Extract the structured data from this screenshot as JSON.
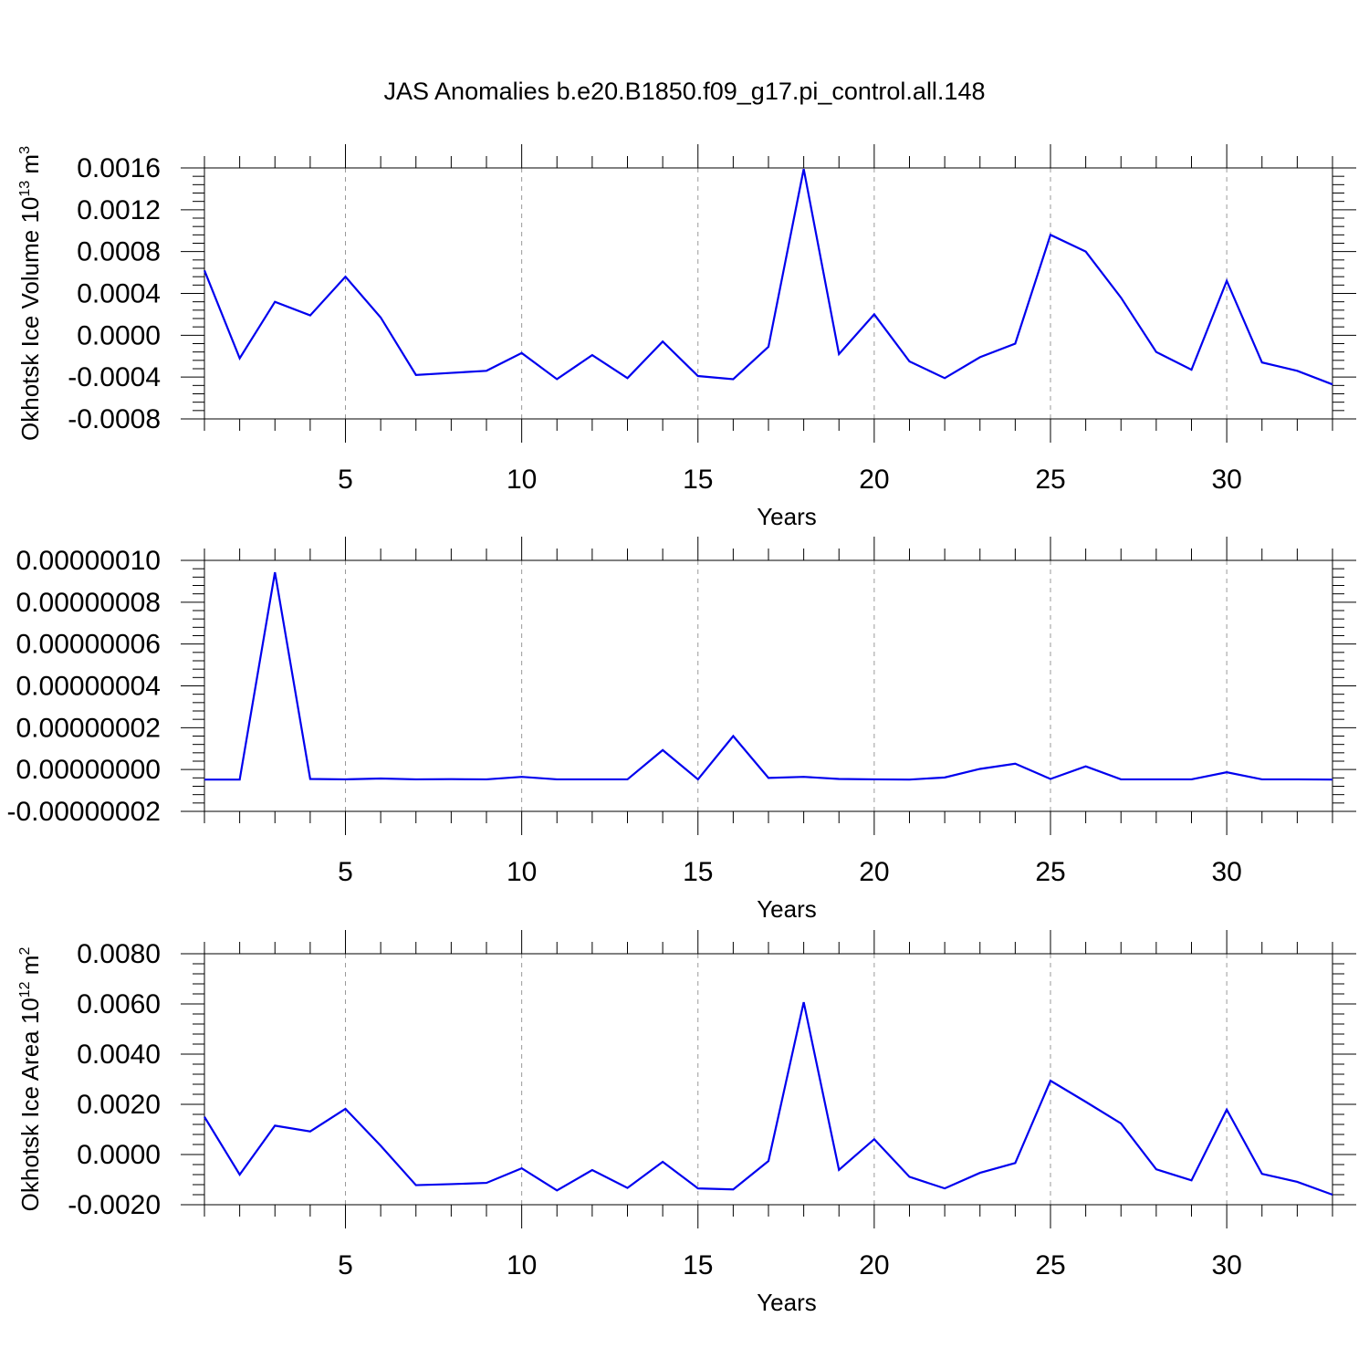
{
  "title": "JAS Anomalies b.e20.B1850.f09_g17.pi_control.all.148",
  "colors": {
    "line": "#0000ee",
    "axis": "#000000",
    "grid": "#9a9a9a"
  },
  "chart_data": [
    {
      "type": "line",
      "xlabel": "Years",
      "ylabel": "Okhotsk Ice Volume 10",
      "ylabel_sup": "13",
      "ylabel_unit": " m",
      "ylabel_unit_sup": "3",
      "xlim": [
        1,
        33
      ],
      "ylim": [
        -0.0008,
        0.0016
      ],
      "xticks": [
        5,
        10,
        15,
        20,
        25,
        30
      ],
      "xtick_labels": [
        "5",
        "10",
        "15",
        "20",
        "25",
        "30"
      ],
      "yticks": [
        -0.0008,
        -0.0004,
        0.0,
        0.0004,
        0.0008,
        0.0012,
        0.0016
      ],
      "ytick_labels": [
        "-0.0008",
        "-0.0004",
        "0.0000",
        "0.0004",
        "0.0008",
        "0.0012",
        "0.0016"
      ],
      "grid": "vertical dashed at major x ticks",
      "x": [
        1,
        2,
        3,
        4,
        5,
        6,
        7,
        8,
        9,
        10,
        11,
        12,
        13,
        14,
        15,
        16,
        17,
        18,
        19,
        20,
        21,
        22,
        23,
        24,
        25,
        26,
        27,
        28,
        29,
        30,
        31,
        32,
        33
      ],
      "y": [
        0.00062,
        -0.00022,
        0.00032,
        0.00019,
        0.00056,
        0.00017,
        -0.00038,
        -0.00036,
        -0.00034,
        -0.00017,
        -0.00042,
        -0.00019,
        -0.00041,
        -6e-05,
        -0.00039,
        -0.00042,
        -0.00011,
        0.00159,
        -0.00018,
        0.0002,
        -0.00025,
        -0.00041,
        -0.00021,
        -8e-05,
        0.00096,
        0.0008,
        0.00036,
        -0.00016,
        -0.00033,
        0.00052,
        -0.00026,
        -0.00034,
        -0.00047
      ]
    },
    {
      "type": "line",
      "xlabel": "Years",
      "ylabel": "",
      "xlim": [
        1,
        33
      ],
      "ylim": [
        -2e-08,
        1e-07
      ],
      "xticks": [
        5,
        10,
        15,
        20,
        25,
        30
      ],
      "xtick_labels": [
        "5",
        "10",
        "15",
        "20",
        "25",
        "30"
      ],
      "yticks": [
        -2e-08,
        0.0,
        2e-08,
        4e-08,
        6e-08,
        8e-08,
        1e-07
      ],
      "ytick_labels": [
        "-0.00000002",
        "0.00000000",
        "0.00000002",
        "0.00000004",
        "0.00000006",
        "0.00000008",
        "0.00000010"
      ],
      "grid": "vertical dashed at major x ticks",
      "x": [
        1,
        2,
        3,
        4,
        5,
        6,
        7,
        8,
        9,
        10,
        11,
        12,
        13,
        14,
        15,
        16,
        17,
        18,
        19,
        20,
        21,
        22,
        23,
        24,
        25,
        26,
        27,
        28,
        29,
        30,
        31,
        32,
        33
      ],
      "y": [
        -4.8e-09,
        -4.8e-09,
        9.43e-08,
        -4.5e-09,
        -4.7e-09,
        -4.3e-09,
        -4.7e-09,
        -4.6e-09,
        -4.7e-09,
        -3.5e-09,
        -4.7e-09,
        -4.7e-09,
        -4.7e-09,
        9.3e-09,
        -4.7e-09,
        1.6e-08,
        -4e-09,
        -3.5e-09,
        -4.5e-09,
        -4.7e-09,
        -4.8e-09,
        -3.8e-09,
        3e-10,
        2.8e-09,
        -4.5e-09,
        1.5e-09,
        -4.7e-09,
        -4.7e-09,
        -4.7e-09,
        -1.3e-09,
        -4.7e-09,
        -4.7e-09,
        -4.8e-09
      ]
    },
    {
      "type": "line",
      "xlabel": "Years",
      "ylabel": "Okhotsk Ice Area 10",
      "ylabel_sup": "12",
      "ylabel_unit": " m",
      "ylabel_unit_sup": "2",
      "xlim": [
        1,
        33
      ],
      "ylim": [
        -0.002,
        0.008
      ],
      "xticks": [
        5,
        10,
        15,
        20,
        25,
        30
      ],
      "xtick_labels": [
        "5",
        "10",
        "15",
        "20",
        "25",
        "30"
      ],
      "yticks": [
        -0.002,
        0.0,
        0.002,
        0.004,
        0.006,
        0.008
      ],
      "ytick_labels": [
        "-0.0020",
        "0.0000",
        "0.0020",
        "0.0040",
        "0.0060",
        "0.0080"
      ],
      "grid": "vertical dashed at major x ticks",
      "x": [
        1,
        2,
        3,
        4,
        5,
        6,
        7,
        8,
        9,
        10,
        11,
        12,
        13,
        14,
        15,
        16,
        17,
        18,
        19,
        20,
        21,
        22,
        23,
        24,
        25,
        26,
        27,
        28,
        29,
        30,
        31,
        32,
        33
      ],
      "y": [
        0.0015,
        -0.0008,
        0.00115,
        0.00092,
        0.00182,
        0.00035,
        -0.00122,
        -0.00118,
        -0.00113,
        -0.00055,
        -0.00143,
        -0.00062,
        -0.00133,
        -0.00029,
        -0.00135,
        -0.00139,
        -0.00026,
        0.00607,
        -0.00061,
        0.00061,
        -0.00089,
        -0.00135,
        -0.00073,
        -0.00034,
        0.00294,
        0.0021,
        0.00124,
        -0.00059,
        -0.00103,
        0.00179,
        -0.00077,
        -0.00109,
        -0.0016
      ]
    }
  ]
}
